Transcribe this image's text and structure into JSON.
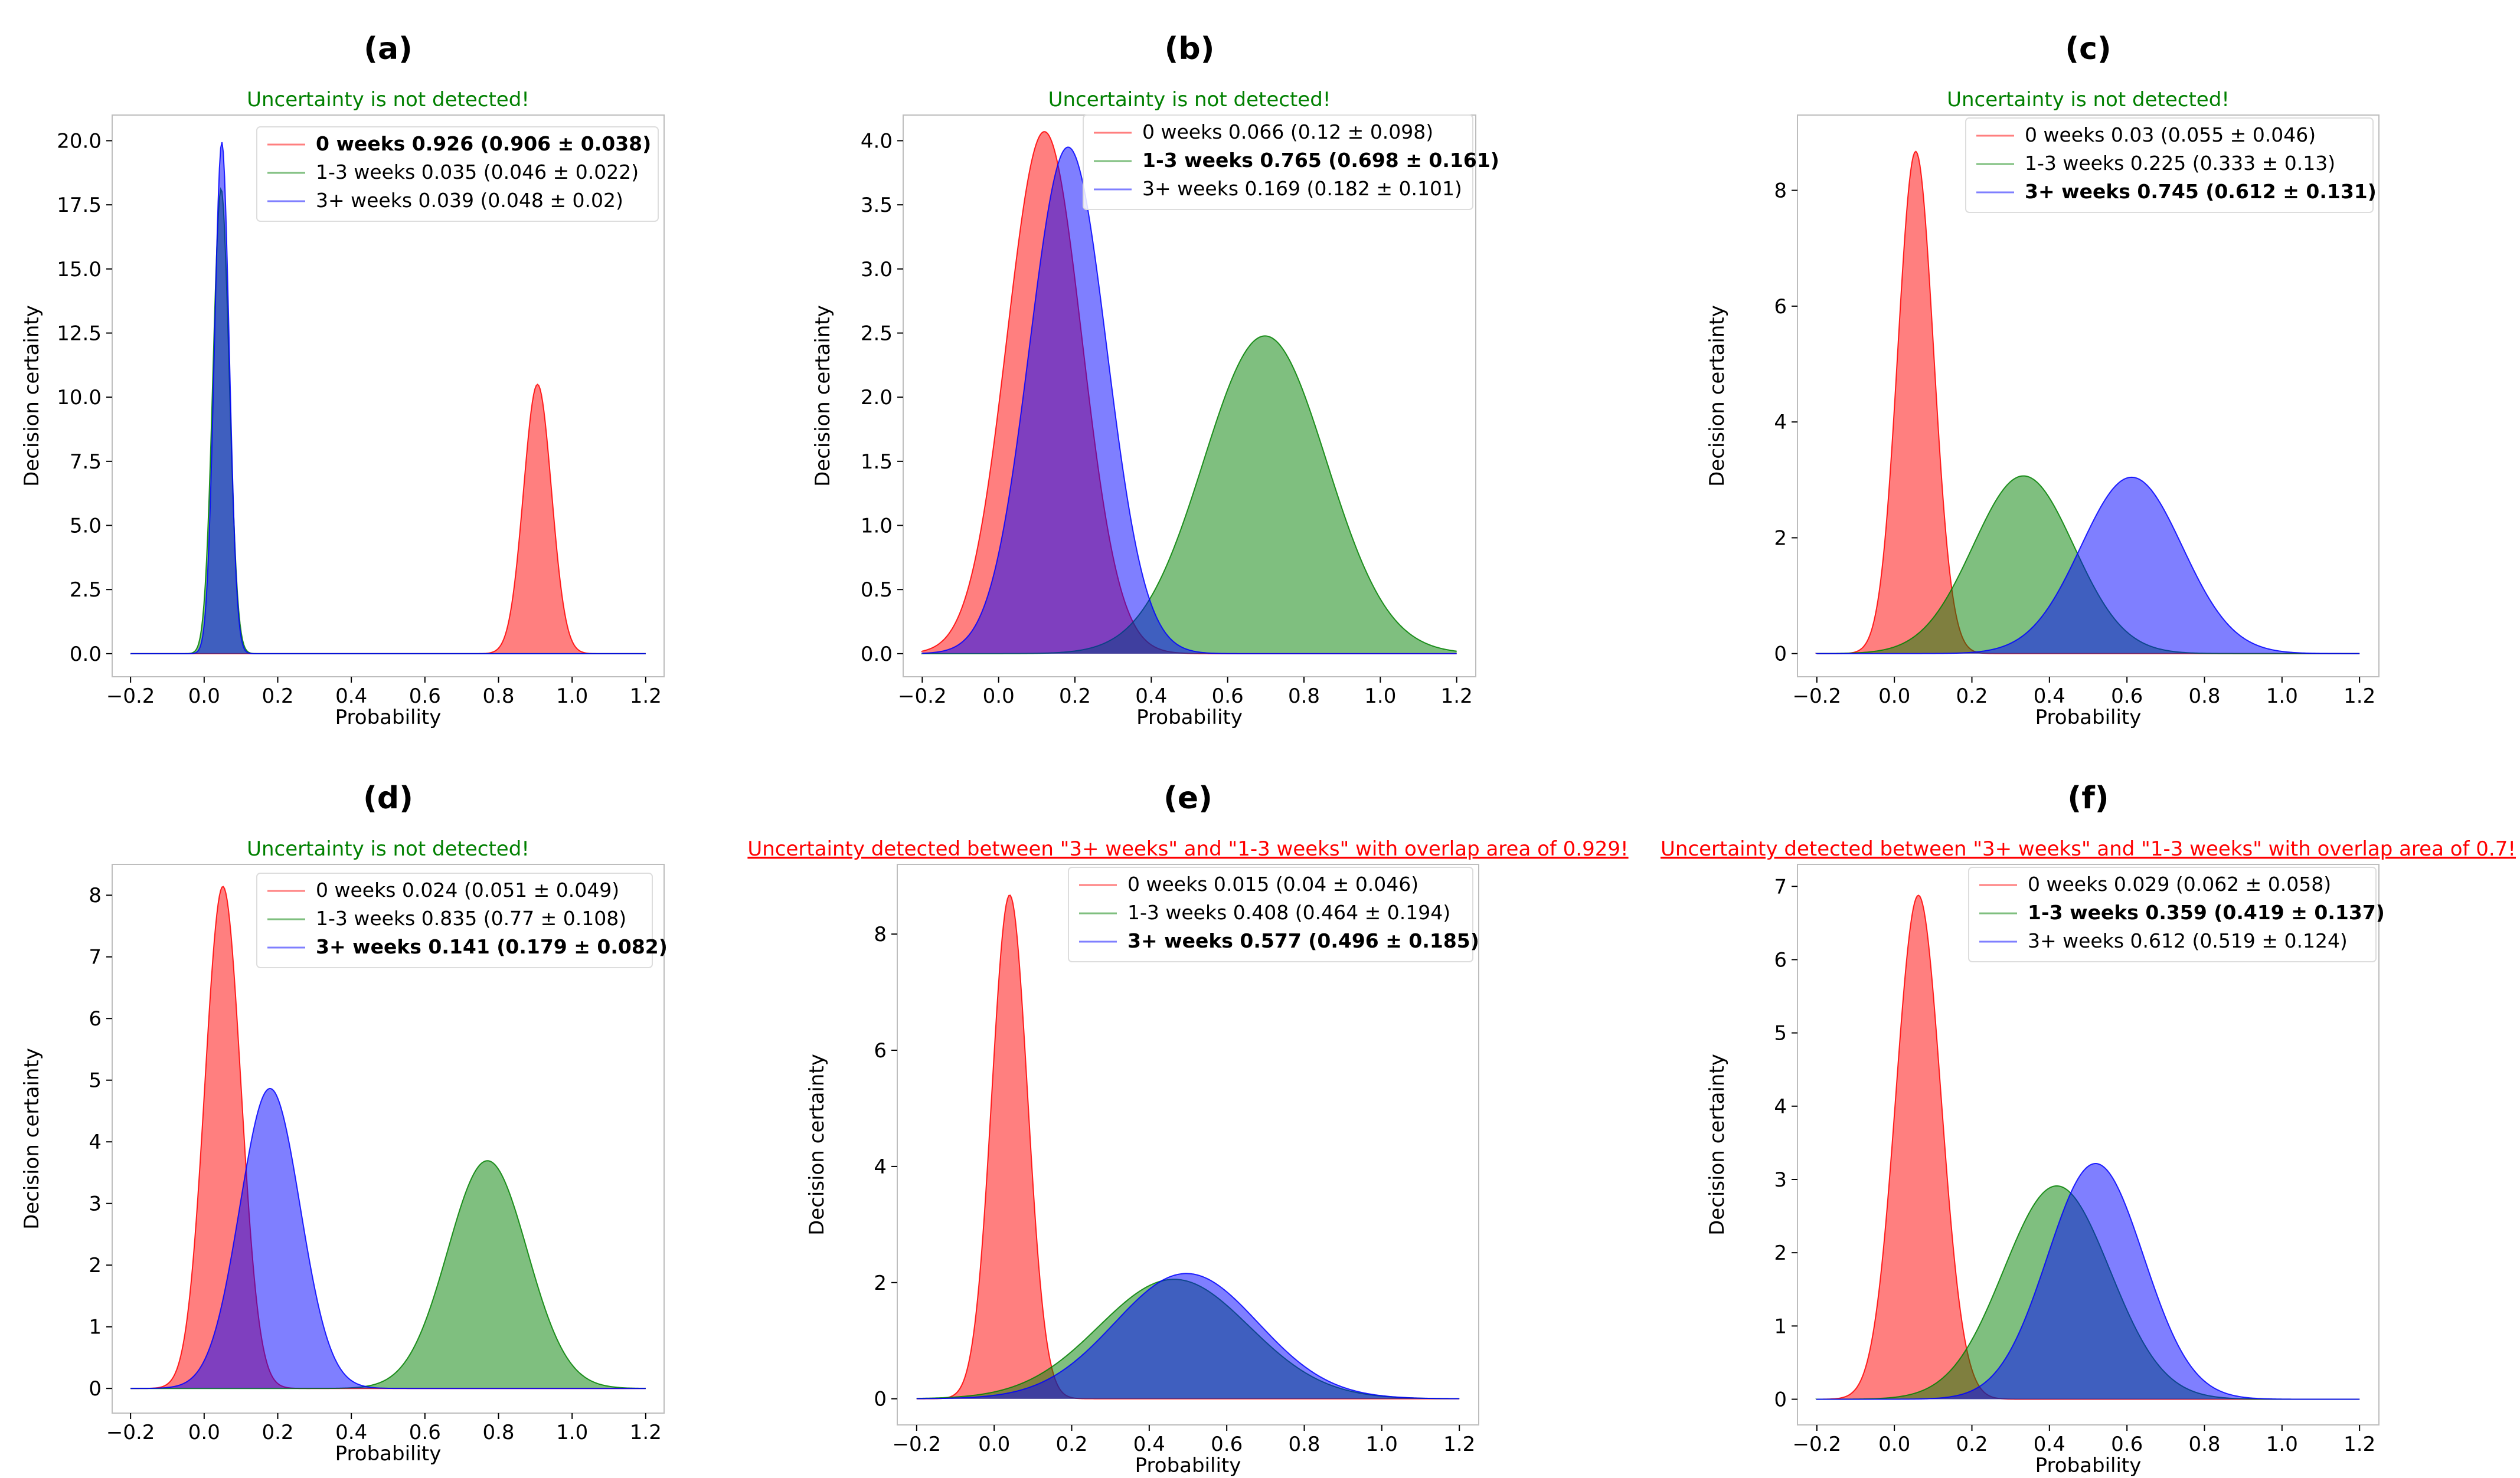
{
  "chart_data": [
    {
      "type": "area",
      "panel_label": "(a)",
      "status": "Uncertainty is not detected!",
      "status_color": "#008000",
      "xlabel": "Probability",
      "ylabel": "Decision certainty",
      "xlim": [
        -0.25,
        1.25
      ],
      "ylim": [
        -0.9,
        21.0
      ],
      "xticks": [
        -0.2,
        0.0,
        0.2,
        0.4,
        0.6,
        0.8,
        1.0,
        1.2
      ],
      "xtick_labels": [
        "−0.2",
        "0.0",
        "0.2",
        "0.4",
        "0.6",
        "0.8",
        "1.0",
        "1.2"
      ],
      "yticks": [
        0,
        2.5,
        5,
        7.5,
        10,
        12.5,
        15,
        17.5,
        20
      ],
      "ytick_labels": [
        "0.0",
        "2.5",
        "5.0",
        "7.5",
        "10.0",
        "12.5",
        "15.0",
        "17.5",
        "20.0"
      ],
      "series": [
        {
          "name": "0 weeks",
          "legend": "0 weeks 0.926 (0.906 ± 0.038)",
          "bold": true,
          "color": "#ff0000",
          "mean": 0.906,
          "std": 0.038
        },
        {
          "name": "1-3 weeks",
          "legend": "1-3 weeks 0.035 (0.046 ± 0.022)",
          "bold": false,
          "color": "#008000",
          "mean": 0.046,
          "std": 0.022
        },
        {
          "name": "3+ weeks",
          "legend": "3+ weeks 0.039 (0.048 ± 0.02)",
          "bold": false,
          "color": "#0000ff",
          "mean": 0.048,
          "std": 0.02
        }
      ]
    },
    {
      "type": "area",
      "panel_label": "(b)",
      "status": "Uncertainty is not detected!",
      "status_color": "#008000",
      "xlabel": "Probability",
      "ylabel": "Decision certainty",
      "xlim": [
        -0.25,
        1.25
      ],
      "ylim": [
        -0.18,
        4.2
      ],
      "xticks": [
        -0.2,
        0.0,
        0.2,
        0.4,
        0.6,
        0.8,
        1.0,
        1.2
      ],
      "xtick_labels": [
        "−0.2",
        "0.0",
        "0.2",
        "0.4",
        "0.6",
        "0.8",
        "1.0",
        "1.2"
      ],
      "yticks": [
        0,
        0.5,
        1,
        1.5,
        2,
        2.5,
        3,
        3.5,
        4
      ],
      "ytick_labels": [
        "0.0",
        "0.5",
        "1.0",
        "1.5",
        "2.0",
        "2.5",
        "3.0",
        "3.5",
        "4.0"
      ],
      "series": [
        {
          "name": "0 weeks",
          "legend": "0 weeks 0.066 (0.12 ± 0.098)",
          "bold": false,
          "color": "#ff0000",
          "mean": 0.12,
          "std": 0.098
        },
        {
          "name": "1-3 weeks",
          "legend": "1-3 weeks 0.765 (0.698 ± 0.161)",
          "bold": true,
          "color": "#008000",
          "mean": 0.698,
          "std": 0.161
        },
        {
          "name": "3+ weeks",
          "legend": "3+ weeks 0.169 (0.182 ± 0.101)",
          "bold": false,
          "color": "#0000ff",
          "mean": 0.182,
          "std": 0.101
        }
      ]
    },
    {
      "type": "area",
      "panel_label": "(c)",
      "status": "Uncertainty is not detected!",
      "status_color": "#008000",
      "xlabel": "Probability",
      "ylabel": "Decision certainty",
      "xlim": [
        -0.25,
        1.25
      ],
      "ylim": [
        -0.4,
        9.3
      ],
      "xticks": [
        -0.2,
        0.0,
        0.2,
        0.4,
        0.6,
        0.8,
        1.0,
        1.2
      ],
      "xtick_labels": [
        "−0.2",
        "0.0",
        "0.2",
        "0.4",
        "0.6",
        "0.8",
        "1.0",
        "1.2"
      ],
      "yticks": [
        0,
        2,
        4,
        6,
        8
      ],
      "ytick_labels": [
        "0",
        "2",
        "4",
        "6",
        "8"
      ],
      "series": [
        {
          "name": "0 weeks",
          "legend": "0 weeks 0.03 (0.055 ± 0.046)",
          "bold": false,
          "color": "#ff0000",
          "mean": 0.055,
          "std": 0.046
        },
        {
          "name": "1-3 weeks",
          "legend": "1-3 weeks 0.225 (0.333 ± 0.13)",
          "bold": false,
          "color": "#008000",
          "mean": 0.333,
          "std": 0.13
        },
        {
          "name": "3+ weeks",
          "legend": "3+ weeks 0.745 (0.612 ± 0.131)",
          "bold": true,
          "color": "#0000ff",
          "mean": 0.612,
          "std": 0.131
        }
      ]
    },
    {
      "type": "area",
      "panel_label": "(d)",
      "status": "Uncertainty is not detected!",
      "status_color": "#008000",
      "xlabel": "Probability",
      "ylabel": "Decision certainty",
      "xlim": [
        -0.25,
        1.25
      ],
      "ylim": [
        -0.4,
        8.5
      ],
      "xticks": [
        -0.2,
        0.0,
        0.2,
        0.4,
        0.6,
        0.8,
        1.0,
        1.2
      ],
      "xtick_labels": [
        "−0.2",
        "0.0",
        "0.2",
        "0.4",
        "0.6",
        "0.8",
        "1.0",
        "1.2"
      ],
      "yticks": [
        0,
        1,
        2,
        3,
        4,
        5,
        6,
        7,
        8
      ],
      "ytick_labels": [
        "0",
        "1",
        "2",
        "3",
        "4",
        "5",
        "6",
        "7",
        "8"
      ],
      "series": [
        {
          "name": "0 weeks",
          "legend": "0 weeks 0.024 (0.051 ± 0.049)",
          "bold": false,
          "color": "#ff0000",
          "mean": 0.051,
          "std": 0.049
        },
        {
          "name": "1-3 weeks",
          "legend": "1-3 weeks 0.835 (0.77 ± 0.108)",
          "bold": false,
          "color": "#008000",
          "mean": 0.77,
          "std": 0.108
        },
        {
          "name": "3+ weeks",
          "legend": "3+ weeks 0.141 (0.179 ± 0.082)",
          "bold": true,
          "color": "#0000ff",
          "mean": 0.179,
          "std": 0.082
        }
      ]
    },
    {
      "type": "area",
      "panel_label": "(e)",
      "status": "Uncertainty detected between \"3+ weeks\" and \"1-3 weeks\" with overlap area of 0.929!",
      "status_color": "#ff0000",
      "xlabel": "Probability",
      "ylabel": "Decision certainty",
      "xlim": [
        -0.25,
        1.25
      ],
      "ylim": [
        -0.45,
        9.2
      ],
      "xticks": [
        -0.2,
        0.0,
        0.2,
        0.4,
        0.6,
        0.8,
        1.0,
        1.2
      ],
      "xtick_labels": [
        "−0.2",
        "0.0",
        "0.2",
        "0.4",
        "0.6",
        "0.8",
        "1.0",
        "1.2"
      ],
      "yticks": [
        0,
        2,
        4,
        6,
        8
      ],
      "ytick_labels": [
        "0",
        "2",
        "4",
        "6",
        "8"
      ],
      "series": [
        {
          "name": "0 weeks",
          "legend": "0 weeks 0.015 (0.04 ± 0.046)",
          "bold": false,
          "color": "#ff0000",
          "mean": 0.04,
          "std": 0.046
        },
        {
          "name": "1-3 weeks",
          "legend": "1-3 weeks 0.408 (0.464 ± 0.194)",
          "bold": false,
          "color": "#008000",
          "mean": 0.464,
          "std": 0.194
        },
        {
          "name": "3+ weeks",
          "legend": "3+ weeks 0.577 (0.496 ± 0.185)",
          "bold": true,
          "color": "#0000ff",
          "mean": 0.496,
          "std": 0.185
        }
      ]
    },
    {
      "type": "area",
      "panel_label": "(f)",
      "status": "Uncertainty detected between \"3+ weeks\" and \"1-3 weeks\" with overlap area of 0.7!",
      "status_color": "#ff0000",
      "xlabel": "Probability",
      "ylabel": "Decision certainty",
      "xlim": [
        -0.25,
        1.25
      ],
      "ylim": [
        -0.35,
        7.3
      ],
      "xticks": [
        -0.2,
        0.0,
        0.2,
        0.4,
        0.6,
        0.8,
        1.0,
        1.2
      ],
      "xtick_labels": [
        "−0.2",
        "0.0",
        "0.2",
        "0.4",
        "0.6",
        "0.8",
        "1.0",
        "1.2"
      ],
      "yticks": [
        0,
        1,
        2,
        3,
        4,
        5,
        6,
        7
      ],
      "ytick_labels": [
        "0",
        "1",
        "2",
        "3",
        "4",
        "5",
        "6",
        "7"
      ],
      "series": [
        {
          "name": "0 weeks",
          "legend": "0 weeks 0.029 (0.062 ± 0.058)",
          "bold": false,
          "color": "#ff0000",
          "mean": 0.062,
          "std": 0.058
        },
        {
          "name": "1-3 weeks",
          "legend": "1-3 weeks 0.359 (0.419 ± 0.137)",
          "bold": true,
          "color": "#008000",
          "mean": 0.419,
          "std": 0.137
        },
        {
          "name": "3+ weeks",
          "legend": "3+ weeks 0.612 (0.519 ± 0.124)",
          "bold": false,
          "color": "#0000ff",
          "mean": 0.519,
          "std": 0.124
        }
      ]
    }
  ]
}
